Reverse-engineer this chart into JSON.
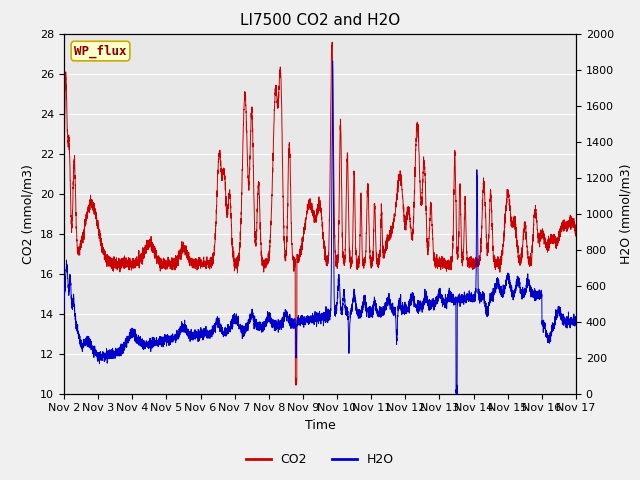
{
  "title": "LI7500 CO2 and H2O",
  "xlabel": "Time",
  "ylabel_left": "CO2 (mmol/m3)",
  "ylabel_right": "H2O (mmol/m3)",
  "ylim_left": [
    10,
    28
  ],
  "ylim_right": [
    0,
    2000
  ],
  "yticks_left": [
    10,
    12,
    14,
    16,
    18,
    20,
    22,
    24,
    26,
    28
  ],
  "yticks_right": [
    0,
    200,
    400,
    600,
    800,
    1000,
    1200,
    1400,
    1600,
    1800,
    2000
  ],
  "xtick_labels": [
    "Nov 2",
    "Nov 3",
    "Nov 4",
    "Nov 5",
    "Nov 6",
    "Nov 7",
    "Nov 8",
    "Nov 9",
    "Nov 10",
    "Nov 11",
    "Nov 12",
    "Nov 13",
    "Nov 14",
    "Nov 15",
    "Nov 16",
    "Nov 17"
  ],
  "co2_color": "#cc0000",
  "h2o_color": "#0000cc",
  "fig_bg_color": "#f0f0f0",
  "plot_bg_color": "#e8e8e8",
  "annotation_text": "WP_flux",
  "annotation_bg": "#ffffcc",
  "annotation_border": "#ccaa00",
  "legend_co2_label": "CO2",
  "legend_h2o_label": "H2O",
  "title_fontsize": 11,
  "axis_label_fontsize": 9,
  "tick_fontsize": 8,
  "linewidth": 0.7
}
